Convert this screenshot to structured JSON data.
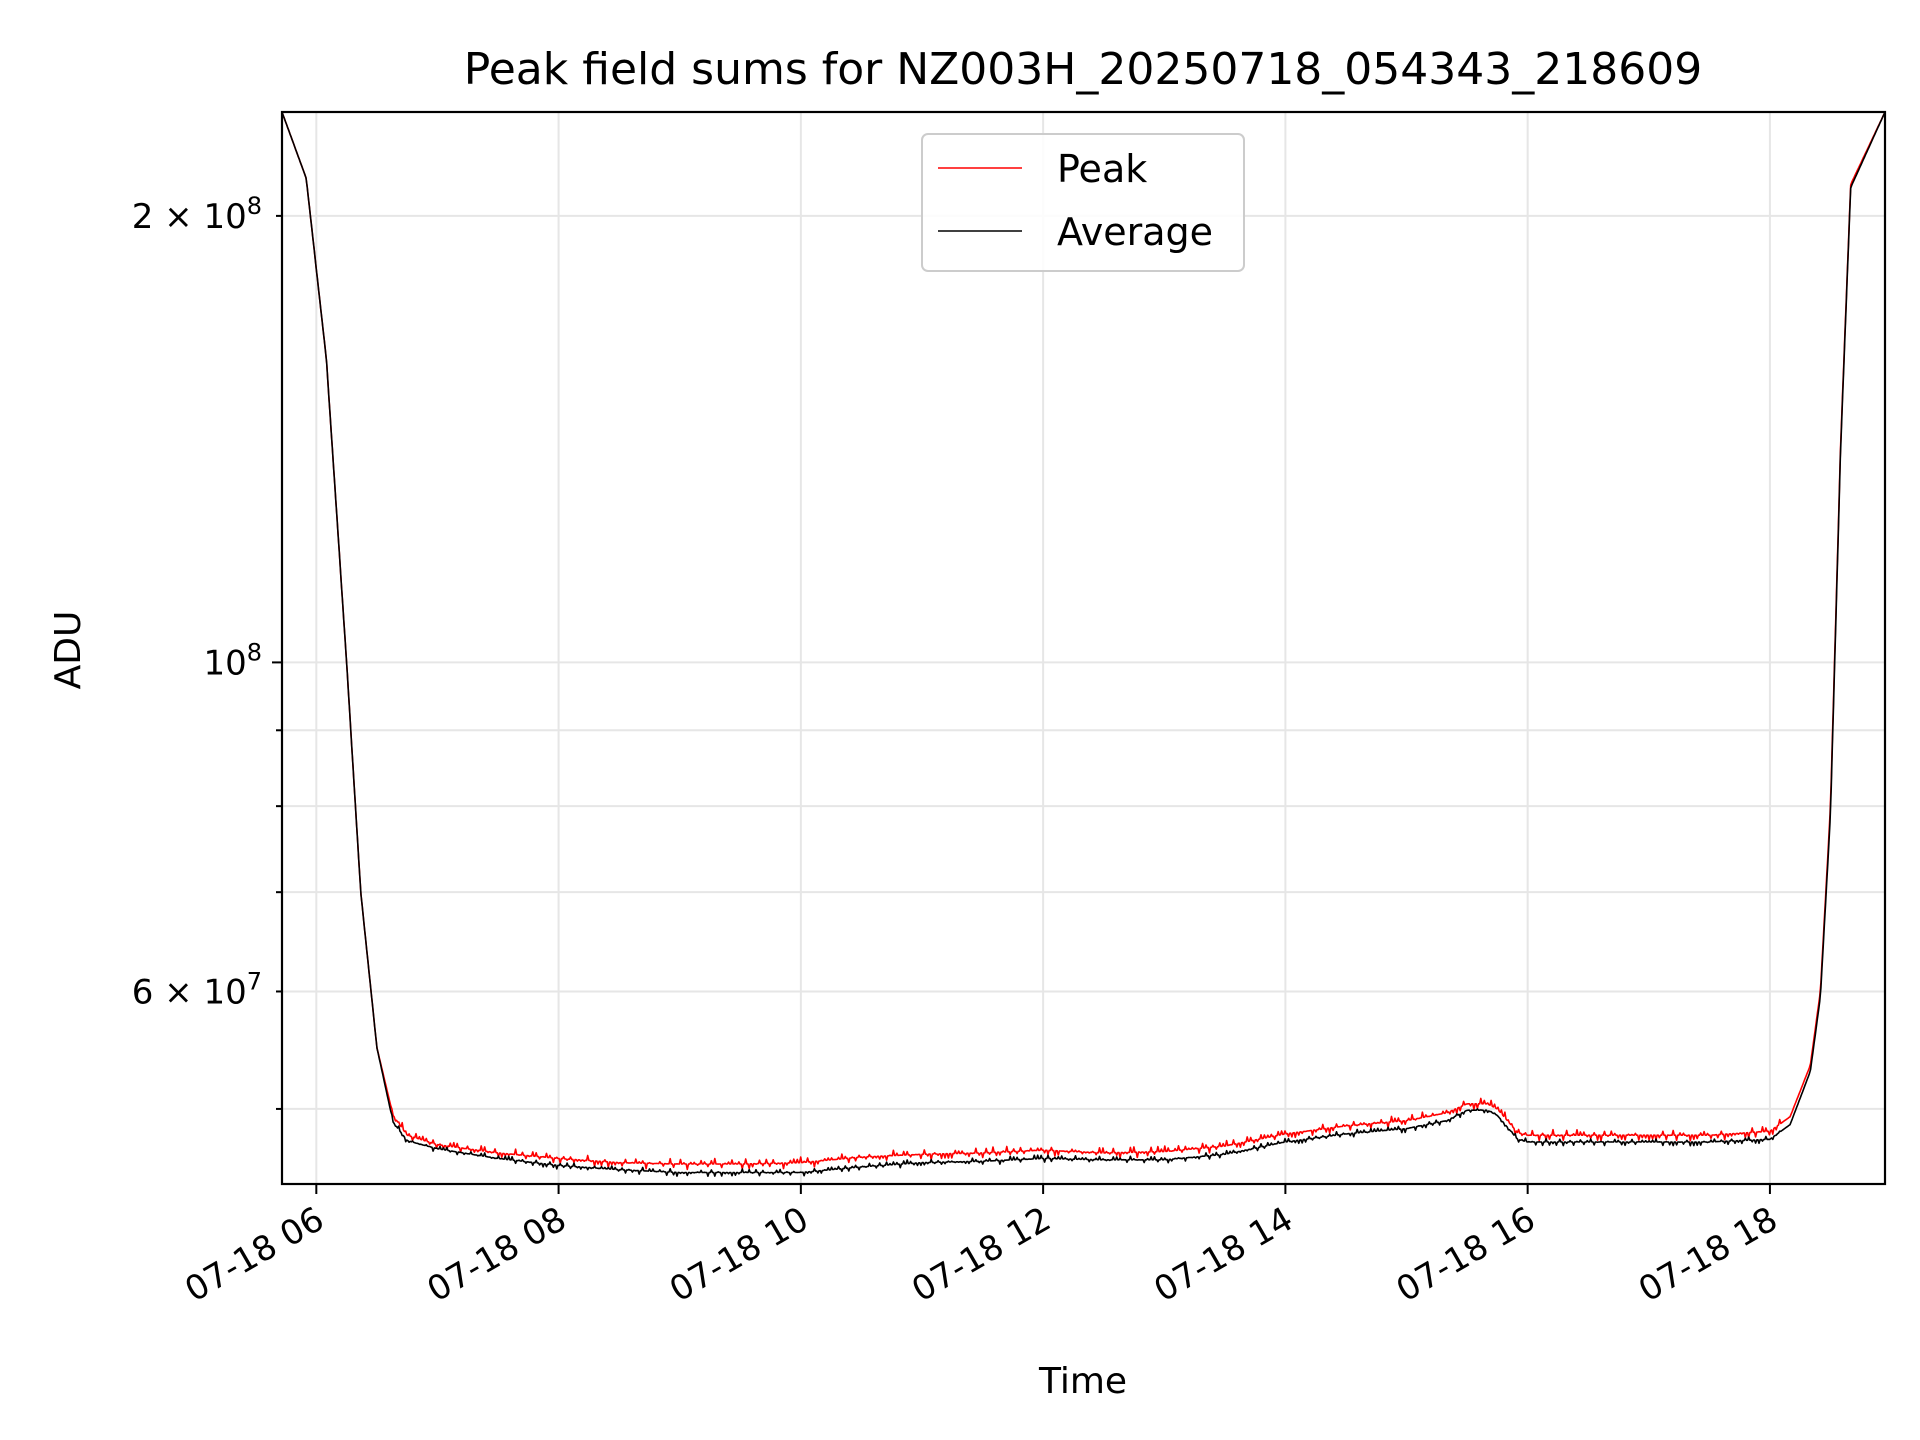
{
  "chart_data": {
    "type": "line",
    "title": "Peak field sums for NZ003H_20250718_054343_218609",
    "xlabel": "Time",
    "ylabel": "ADU",
    "yscale": "log",
    "xlim": [
      "07-18 05:43",
      "07-18 18:57"
    ],
    "ylim": [
      44500000,
      235000000
    ],
    "grid": true,
    "legend": "top-center",
    "x_ticks": [
      "07-18 06",
      "07-18 08",
      "07-18 10",
      "07-18 12",
      "07-18 14",
      "07-18 16",
      "07-18 18"
    ],
    "y_ticks_major": [
      {
        "value": 100000000,
        "mantissa": "",
        "exponent": "8"
      }
    ],
    "y_ticks_minor_labeled": [
      {
        "value": 60000000,
        "mantissa": "6",
        "exponent": "7"
      },
      {
        "value": 200000000,
        "mantissa": "2",
        "exponent": "8"
      }
    ],
    "y_ticks_minor": [
      50000000,
      70000000,
      80000000,
      90000000
    ],
    "x": [
      "07-18 05:43",
      "07-18 05:55",
      "07-18 06:05",
      "07-18 06:15",
      "07-18 06:22",
      "07-18 06:30",
      "07-18 06:38",
      "07-18 06:45",
      "07-18 07:00",
      "07-18 07:30",
      "07-18 08:00",
      "07-18 08:30",
      "07-18 09:00",
      "07-18 09:30",
      "07-18 10:00",
      "07-18 10:30",
      "07-18 11:00",
      "07-18 11:30",
      "07-18 12:00",
      "07-18 12:30",
      "07-18 13:00",
      "07-18 13:30",
      "07-18 14:00",
      "07-18 14:30",
      "07-18 15:00",
      "07-18 15:20",
      "07-18 15:30",
      "07-18 15:40",
      "07-18 15:45",
      "07-18 15:55",
      "07-18 16:00",
      "07-18 16:30",
      "07-18 17:00",
      "07-18 17:30",
      "07-18 18:00",
      "07-18 18:10",
      "07-18 18:20",
      "07-18 18:25",
      "07-18 18:30",
      "07-18 18:35",
      "07-18 18:40",
      "07-18 18:57"
    ],
    "series": [
      {
        "name": "Peak",
        "color": "#ff0000",
        "values": [
          235000000,
          212000000,
          160000000,
          100000000,
          70000000,
          55000000,
          49500000,
          48000000,
          47300000,
          46700000,
          46300000,
          46000000,
          45900000,
          45900000,
          46000000,
          46400000,
          46600000,
          46700000,
          46900000,
          46700000,
          46800000,
          47200000,
          48100000,
          48700000,
          49100000,
          49700000,
          50400000,
          50400000,
          50000000,
          48200000,
          48000000,
          48000000,
          48000000,
          48000000,
          48300000,
          49400000,
          53500000,
          60000000,
          80000000,
          140000000,
          210000000,
          235000000
        ]
      },
      {
        "name": "Average",
        "color": "#000000",
        "values": [
          235000000,
          212000000,
          160000000,
          100000000,
          70000000,
          55000000,
          49000000,
          47600000,
          47000000,
          46300000,
          45800000,
          45500000,
          45300000,
          45300000,
          45300000,
          45700000,
          46000000,
          46100000,
          46300000,
          46200000,
          46200000,
          46600000,
          47500000,
          48100000,
          48500000,
          49100000,
          49900000,
          49900000,
          49500000,
          47700000,
          47500000,
          47500000,
          47500000,
          47500000,
          47700000,
          48800000,
          53000000,
          59500000,
          79000000,
          139000000,
          209000000,
          235000000
        ]
      }
    ]
  }
}
